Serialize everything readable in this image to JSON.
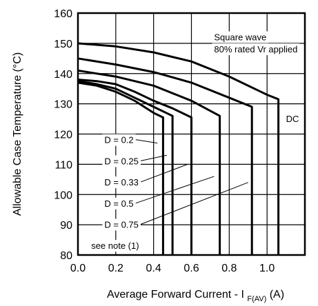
{
  "chart_data": {
    "type": "line",
    "xlabel": "Average Forward Current - I",
    "xlabel_subscript": "F(AV)",
    "xlabel_unit": "(A)",
    "ylabel": "Allowable Case Temperature (°C)",
    "xlim": [
      0,
      1.2
    ],
    "ylim": [
      80,
      160
    ],
    "x_ticks": [
      "0.0",
      "0.2",
      "0.4",
      "0.6",
      "0.8",
      "1.0"
    ],
    "y_ticks": [
      "80",
      "90",
      "100",
      "110",
      "120",
      "130",
      "140",
      "150",
      "160"
    ],
    "grid": true,
    "series": [
      {
        "name": "D = 0.2",
        "points": [
          [
            0,
            137
          ],
          [
            0.1,
            136
          ],
          [
            0.2,
            134
          ],
          [
            0.3,
            131
          ],
          [
            0.4,
            127
          ],
          [
            0.45,
            125.5
          ]
        ],
        "drop_x": 0.45,
        "label_at": [
          0.42,
          117
        ]
      },
      {
        "name": "D = 0.25",
        "points": [
          [
            0,
            137.5
          ],
          [
            0.1,
            136.5
          ],
          [
            0.2,
            135
          ],
          [
            0.3,
            132
          ],
          [
            0.4,
            129
          ],
          [
            0.5,
            126
          ]
        ],
        "drop_x": 0.5,
        "label_at": [
          0.47,
          113
        ]
      },
      {
        "name": "D = 0.33",
        "points": [
          [
            0,
            138
          ],
          [
            0.1,
            137.5
          ],
          [
            0.2,
            136.5
          ],
          [
            0.3,
            134
          ],
          [
            0.4,
            131
          ],
          [
            0.5,
            128.5
          ],
          [
            0.6,
            125.5
          ]
        ],
        "drop_x": 0.6,
        "label_at": [
          0.58,
          110
        ]
      },
      {
        "name": "D = 0.5",
        "points": [
          [
            0,
            141
          ],
          [
            0.2,
            139
          ],
          [
            0.4,
            136
          ],
          [
            0.6,
            131
          ],
          [
            0.75,
            126
          ]
        ],
        "drop_x": 0.75,
        "label_at": [
          0.72,
          106
        ]
      },
      {
        "name": "D = 0.75",
        "points": [
          [
            0,
            145
          ],
          [
            0.2,
            143
          ],
          [
            0.4,
            140.5
          ],
          [
            0.6,
            137
          ],
          [
            0.8,
            132
          ],
          [
            0.92,
            129
          ]
        ],
        "drop_x": 0.92,
        "label_at": [
          0.9,
          104
        ]
      },
      {
        "name": "DC",
        "points": [
          [
            0,
            150
          ],
          [
            0.2,
            149
          ],
          [
            0.4,
            147
          ],
          [
            0.6,
            144
          ],
          [
            0.8,
            139
          ],
          [
            1.0,
            133
          ],
          [
            1.06,
            131.5
          ]
        ],
        "drop_x": 1.06
      }
    ],
    "annotations": [
      {
        "text": "D = 0.2",
        "x": 0.14,
        "y": 117
      },
      {
        "text": "D = 0.25",
        "x": 0.14,
        "y": 110
      },
      {
        "text": "D = 0.33",
        "x": 0.14,
        "y": 103
      },
      {
        "text": "D = 0.5",
        "x": 0.14,
        "y": 96
      },
      {
        "text": "D = 0.75",
        "x": 0.14,
        "y": 89
      },
      {
        "text": "DC",
        "x": 1.1,
        "y": 124
      },
      {
        "text": "Square wave",
        "x": 0.72,
        "y": 151
      },
      {
        "text": "80% rated Vr applied",
        "x": 0.72,
        "y": 147
      },
      {
        "text": "see note (1)",
        "x": 0.07,
        "y": 82
      }
    ],
    "legend": "none"
  }
}
